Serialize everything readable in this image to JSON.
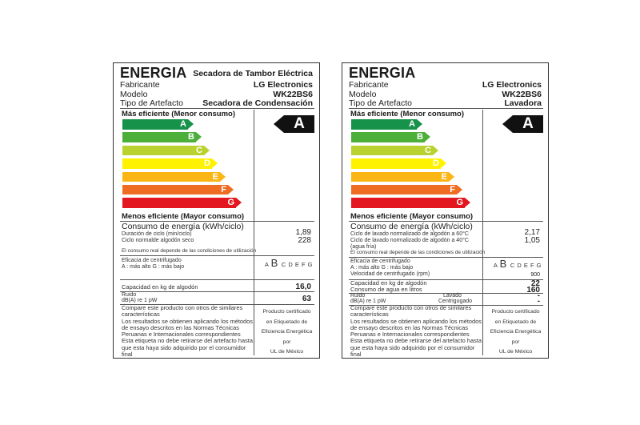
{
  "labels": [
    {
      "title": "ENERGIA",
      "product_type_heading": "Secadora de Tambor Eléctrica",
      "fields": [
        {
          "key": "Fabricante",
          "value": "LG Electronics"
        },
        {
          "key": "Modelo",
          "value": "WK22BS6"
        },
        {
          "key": "Tipo de Artefacto",
          "value": "Secadora de Condensación"
        }
      ],
      "best_label": "Más eficiente (Menor consumo)",
      "worst_label": "Menos eficiente (Mayor consumo)",
      "classes": [
        "A",
        "B",
        "C",
        "D",
        "E",
        "F",
        "G"
      ],
      "rating": "A",
      "energy": {
        "heading": "Consumo de energía (kWh/ciclo)",
        "lines": [
          "Duración de ciclo (min/ciclo)",
          "Ciclo normalde algodón seco"
        ],
        "values": [
          "1,89",
          "228"
        ],
        "note": "El consumo real depende de las condiciones de utilización"
      },
      "spin": {
        "heading": "Eficacia de centrifugado",
        "legend": "A : más alto     G : más bajo",
        "scale": [
          "A",
          "B",
          "C",
          "D",
          "E",
          "F",
          "G"
        ],
        "selected": "B"
      },
      "capacity": {
        "label": "Capacidad en kg de algodón",
        "value": "16,0"
      },
      "noise": {
        "label1": "Ruido",
        "label2": "dB(A) re 1 pW",
        "value": "63"
      },
      "footer_left": [
        "Compare este producto con otros de similares características",
        "Los resultados se obtienen aplicando los métodos de ensayo descritos en las Normas Técnicas Peruanas e Internacionales correspondientes",
        "Esta etiqueta no debe retirarse del artefacto hasta que esta haya sido adquirido por el consumidor final"
      ],
      "footer_right": [
        "Producto certificado",
        "en Etiquetado de",
        "Eficiencia Energética",
        "por",
        "UL de México"
      ]
    },
    {
      "title": "ENERGIA",
      "product_type_heading": "",
      "fields": [
        {
          "key": "Fabricante",
          "value": "LG Electronics"
        },
        {
          "key": "Modelo",
          "value": "WK22BS6"
        },
        {
          "key": "Tipo de Artefacto",
          "value": "Lavadora"
        }
      ],
      "best_label": "Más eficiente (Menor consumo)",
      "worst_label": "Menos eficiente (Mayor consumo)",
      "classes": [
        "A",
        "B",
        "C",
        "D",
        "E",
        "F",
        "G"
      ],
      "rating": "A",
      "energy": {
        "heading": "Consumo de energía (kWh/ciclo)",
        "lines": [
          "Ciclo de lavado normalizado de algodón a 60°C",
          "Ciclo de lavado normalizado de algodón a 40°C",
          "(agua fría)"
        ],
        "values": [
          "2,17",
          "1,05"
        ],
        "note": "El consumo real depende de las condiciones de utilización"
      },
      "spin": {
        "heading": "Eficacia de centrifugado",
        "legend": "A : más alto     G : más bajo",
        "scale": [
          "A",
          "B",
          "C",
          "D",
          "E",
          "F",
          "G"
        ],
        "selected": "B",
        "speed_label": "Velocidad de centrifugado (rpm)",
        "speed_value": "900"
      },
      "capacity": {
        "label": "Capacidad en kg de algodón",
        "value": "22"
      },
      "water": {
        "label": "Consumo de agua en litros",
        "value": "160"
      },
      "noise": {
        "label1": "Ruido",
        "label2": "dB(A) re 1 pW",
        "wash_label": "Lavado",
        "spin_label": "Centrigugado",
        "wash_value": "-",
        "spin_value": "-"
      },
      "footer_left": [
        "Compare este producto con otros de similares características",
        "Los resultados se obtienen aplicando los métodos de ensayo descritos en las Normas Técnicas Peruanas e Internacionales correspondientes",
        "Esta etiqueta no debe retirarse del artefacto hasta que esta haya sido adquirido por el consumidor final"
      ],
      "footer_right": [
        "Producto certificado",
        "en Etiquetado de",
        "Eficiencia Energética",
        "por",
        "UL de México"
      ]
    }
  ],
  "bar_colors": [
    "#17924a",
    "#4caf3a",
    "#b9d230",
    "#fff200",
    "#fbb514",
    "#ee6d22",
    "#e2171f"
  ]
}
